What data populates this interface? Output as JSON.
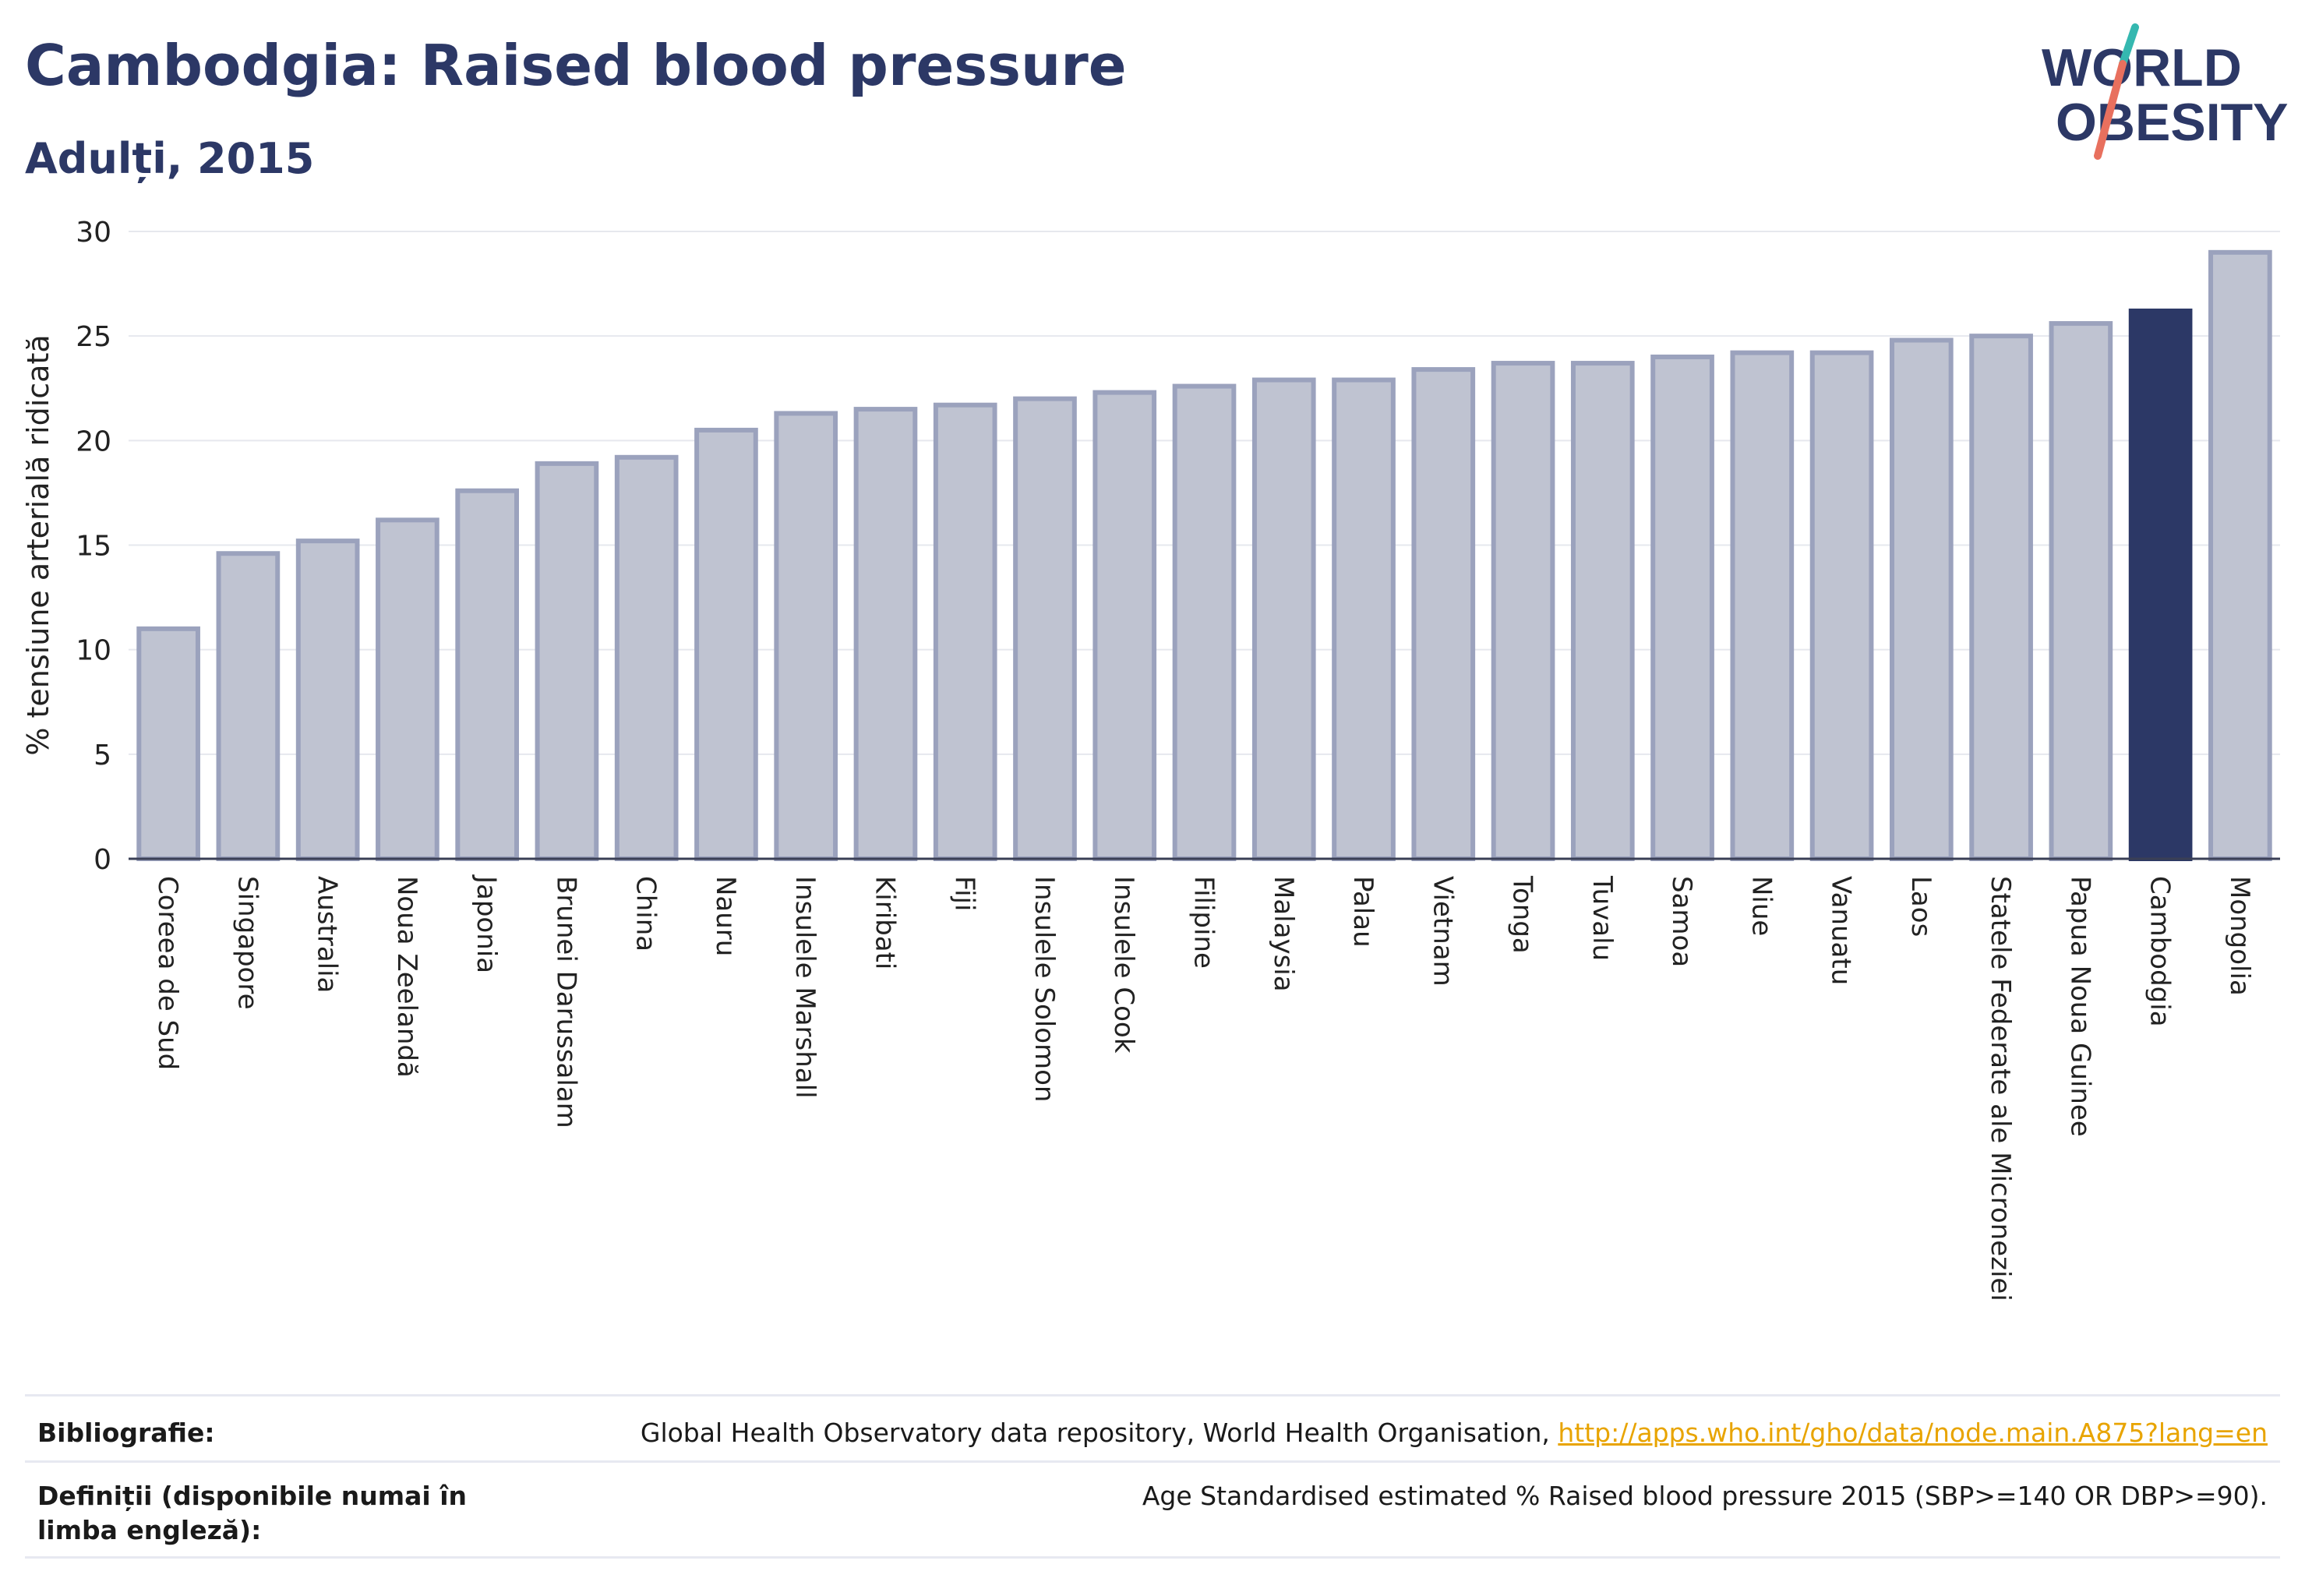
{
  "header": {
    "title": "Cambodgia: Raised blood pressure",
    "subtitle": "Adulți, 2015"
  },
  "logo": {
    "line1": "WORLD",
    "line2": "OBESITY"
  },
  "chart_data": {
    "type": "bar",
    "ylabel": "% tensiune arterială ridicată",
    "ylim": [
      0,
      30
    ],
    "yticks": [
      0,
      5,
      10,
      15,
      20,
      25,
      30
    ],
    "grid": true,
    "categories": [
      "Coreea de Sud",
      "Singapore",
      "Australia",
      "Noua Zeelandă",
      "Japonia",
      "Brunei Darussalam",
      "China",
      "Nauru",
      "Insulele Marshall",
      "Kiribati",
      "Fiji",
      "Insulele Solomon",
      "Insulele Cook",
      "Filipine",
      "Malaysia",
      "Palau",
      "Vietnam",
      "Tonga",
      "Tuvalu",
      "Samoa",
      "Niue",
      "Vanuatu",
      "Laos",
      "Statele Federate ale Microneziei",
      "Papua Noua Guinee",
      "Cambodgia",
      "Mongolia"
    ],
    "values": [
      11.0,
      14.6,
      15.2,
      16.2,
      17.6,
      18.9,
      19.2,
      20.5,
      21.3,
      21.5,
      21.7,
      22.0,
      22.3,
      22.6,
      22.9,
      22.9,
      23.4,
      23.7,
      23.7,
      24.0,
      24.2,
      24.2,
      24.8,
      25.0,
      25.6,
      26.2,
      29.0
    ],
    "highlight": "Cambodgia",
    "colors": {
      "bar": "#bfc3d1",
      "bar_edge": "#9ba2bd",
      "highlight": "#2c3866",
      "grid": "#e6e8ee",
      "axis": "#3a3f55"
    }
  },
  "footer": {
    "bibliography_label": "Bibliografie:",
    "bibliography_text": "Global Health Observatory data repository, World Health Organisation, ",
    "bibliography_link": "http://apps.who.int/gho/data/node.main.A875?lang=en",
    "definitions_label": "Definiții (disponibile numai în limba engleză):",
    "definitions_text": "Age Standardised estimated % Raised blood pressure 2015 (SBP>=140 OR DBP>=90)."
  }
}
